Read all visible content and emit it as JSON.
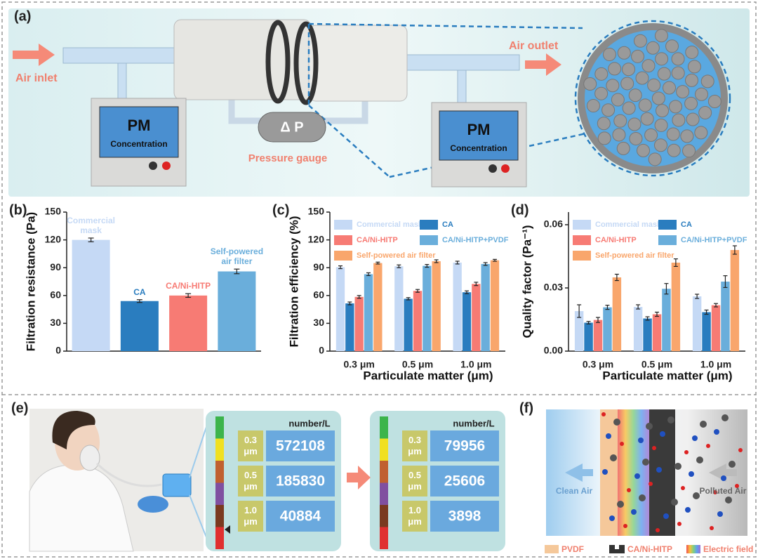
{
  "panels": {
    "a": {
      "label": "(a)",
      "air_inlet": "Air inlet",
      "air_outlet": "Air outlet",
      "pm_left": {
        "title": "PM",
        "subtitle": "Concentration"
      },
      "pm_right": {
        "title": "PM",
        "subtitle": "Concentration"
      },
      "gauge": "Δ P",
      "gauge_label": "Pressure gauge"
    },
    "e": {
      "label": "(e)",
      "displays": [
        {
          "unit": "number/L",
          "rows": [
            {
              "size": "0.3 μm",
              "count": "572108"
            },
            {
              "size": "0.5 μm",
              "count": "185830"
            },
            {
              "size": "1.0 μm",
              "count": "40884"
            }
          ]
        },
        {
          "unit": "number/L",
          "rows": [
            {
              "size": "0.3 μm",
              "count": "79956"
            },
            {
              "size": "0.5 μm",
              "count": "25606"
            },
            {
              "size": "1.0 μm",
              "count": "3898"
            }
          ]
        }
      ]
    },
    "f": {
      "label": "(f)",
      "clean": "Clean Air",
      "polluted": "Polluted Air",
      "legend": [
        "PVDF",
        "CA/Ni-HITP",
        "Electric field"
      ]
    }
  },
  "chart_data": [
    {
      "type": "bar",
      "panel_label": "(b)",
      "y_label": "Filtration resistance (Pa)",
      "categories": [
        "Commercial mask",
        "CA",
        "CA/Ni-HITP",
        "Self-powered air filter"
      ],
      "values": [
        120,
        54,
        60,
        86
      ],
      "errors": [
        2,
        1.5,
        2,
        2.5
      ],
      "colors": [
        "#c5d9f5",
        "#2a7dbf",
        "#f77b74",
        "#6aaedb"
      ],
      "ylim": [
        0,
        150
      ],
      "yticks": [
        0,
        30,
        60,
        90,
        120,
        150
      ]
    },
    {
      "type": "bar",
      "panel_label": "(c)",
      "y_label": "Filtration efficiency (%)",
      "x_label": "Particulate matter (μm)",
      "categories": [
        "0.3 μm",
        "0.5 μm",
        "1.0 μm"
      ],
      "series": [
        {
          "name": "Commercial mask",
          "color": "#c5d9f5",
          "values": [
            90.5,
            91.5,
            95.5
          ],
          "errors": [
            1.5,
            1.5,
            1.5
          ]
        },
        {
          "name": "CA",
          "color": "#2a7dbf",
          "values": [
            51.5,
            56.5,
            63.5
          ],
          "errors": [
            1.5,
            1.2,
            1.5
          ]
        },
        {
          "name": "CA/Ni-HITP",
          "color": "#f77b74",
          "values": [
            58.5,
            65,
            72.5
          ],
          "errors": [
            1.5,
            1.5,
            1.8
          ]
        },
        {
          "name": "CA/Ni-HITP+PVDF",
          "color": "#6aaedb",
          "values": [
            83,
            92,
            94
          ],
          "errors": [
            1.5,
            1.5,
            1.5
          ]
        },
        {
          "name": "Self-powered air filter",
          "color": "#f9a66c",
          "values": [
            95,
            97,
            98
          ],
          "errors": [
            1,
            1.5,
            1
          ]
        }
      ],
      "ylim": [
        0,
        150
      ],
      "yticks": [
        0,
        30,
        60,
        90,
        120,
        150
      ]
    },
    {
      "type": "bar",
      "panel_label": "(d)",
      "y_label": "Quality factor (Pa⁻¹)",
      "x_label": "Particulate matter (μm)",
      "categories": [
        "0.3 μm",
        "0.5 μm",
        "1.0 μm"
      ],
      "series": [
        {
          "name": "Commercial mask",
          "color": "#c5d9f5",
          "values": [
            0.019,
            0.021,
            0.026
          ],
          "errors": [
            0.003,
            0.001,
            0.001
          ]
        },
        {
          "name": "CA",
          "color": "#2a7dbf",
          "values": [
            0.0135,
            0.0155,
            0.0185
          ],
          "errors": [
            0.0006,
            0.0008,
            0.001
          ]
        },
        {
          "name": "CA/Ni-HITP",
          "color": "#f77b74",
          "values": [
            0.0148,
            0.0175,
            0.0218
          ],
          "errors": [
            0.0012,
            0.001,
            0.0008
          ]
        },
        {
          "name": "CA/Ni-HITP+PVDF",
          "color": "#6aaedb",
          "values": [
            0.0208,
            0.0296,
            0.033
          ],
          "errors": [
            0.001,
            0.0025,
            0.0028
          ]
        },
        {
          "name": "Self-powered air filter",
          "color": "#f9a66c",
          "values": [
            0.035,
            0.042,
            0.048
          ],
          "errors": [
            0.0015,
            0.0018,
            0.002
          ]
        }
      ],
      "ylim": [
        0,
        0.066
      ],
      "yticks": [
        {
          "value": 0,
          "label": "0.00"
        },
        {
          "value": 0.03,
          "label": "0.03"
        },
        {
          "value": 0.06,
          "label": "0.06"
        }
      ]
    }
  ]
}
